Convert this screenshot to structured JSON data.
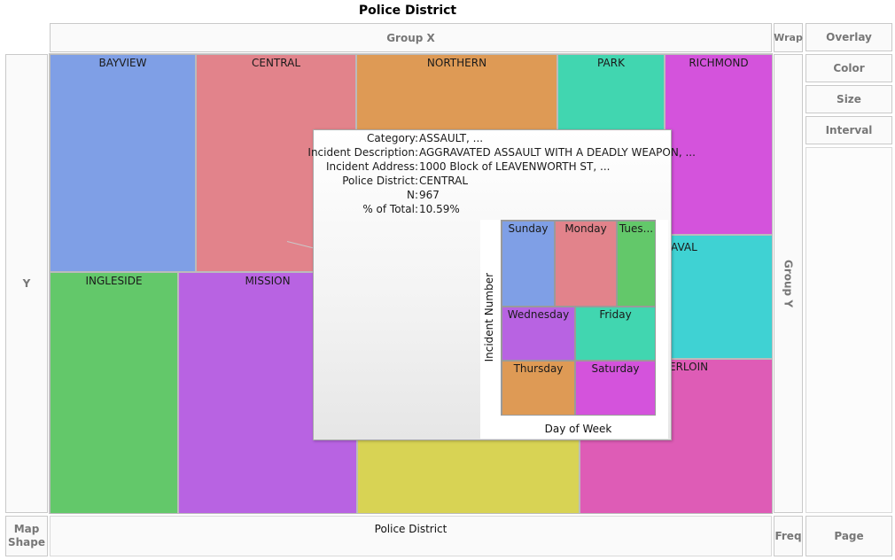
{
  "graph": {
    "title": "Police District",
    "zones": {
      "group_x": "Group X",
      "wrap": "Wrap",
      "overlay": "Overlay",
      "color": "Color",
      "size": "Size",
      "interval": "Interval",
      "y": "Y",
      "group_y": "Group Y",
      "map_shape": "Map Shape",
      "x_axis": "Police District",
      "freq": "Freq",
      "page": "Page"
    }
  },
  "colors": {
    "bayview": "#7f9fe6",
    "central": "#e2838b",
    "northern": "#de9a55",
    "park": "#41d6b0",
    "richmond": "#d453dc",
    "ingleside": "#63c86a",
    "mission": "#b863e2",
    "southern": "#d8d354",
    "taraval": "#3fd2d3",
    "tenderloin": "#de5cb6",
    "sunday": "#7f9fe6",
    "monday": "#e2838b",
    "tuesday": "#63c86a",
    "wednesday": "#b863e2",
    "friday": "#41d6b0",
    "thursday": "#de9a55",
    "saturday": "#d453dc"
  },
  "treemap": {
    "cells": [
      {
        "label": "BAYVIEW"
      },
      {
        "label": "CENTRAL"
      },
      {
        "label": "NORTHERN"
      },
      {
        "label": "PARK"
      },
      {
        "label": "RICHMOND"
      },
      {
        "label": "INGLESIDE"
      },
      {
        "label": "MISSION"
      },
      {
        "label": "AVAL"
      },
      {
        "label": "ERLOIN"
      },
      {
        "label": ""
      }
    ]
  },
  "tooltip": {
    "rows": [
      {
        "key": "Category:",
        "value": "ASSAULT, ..."
      },
      {
        "key": "Incident Description:",
        "value": "AGGRAVATED ASSAULT WITH A DEADLY WEAPON, ..."
      },
      {
        "key": "Incident Address:",
        "value": "1000 Block of LEAVENWORTH ST, ..."
      },
      {
        "key": "Police District:",
        "value": "CENTRAL"
      },
      {
        "key": "N:",
        "value": "967"
      },
      {
        "key": "% of Total:",
        "value": "10.59%"
      }
    ],
    "mini_chart": {
      "y_label": "Incident Number",
      "x_label": "Day of Week",
      "cells": [
        {
          "label": "Sunday"
        },
        {
          "label": "Monday"
        },
        {
          "label": "Tues..."
        },
        {
          "label": "Wednesday"
        },
        {
          "label": "Friday"
        },
        {
          "label": "Thursday"
        },
        {
          "label": "Saturday"
        }
      ]
    }
  }
}
